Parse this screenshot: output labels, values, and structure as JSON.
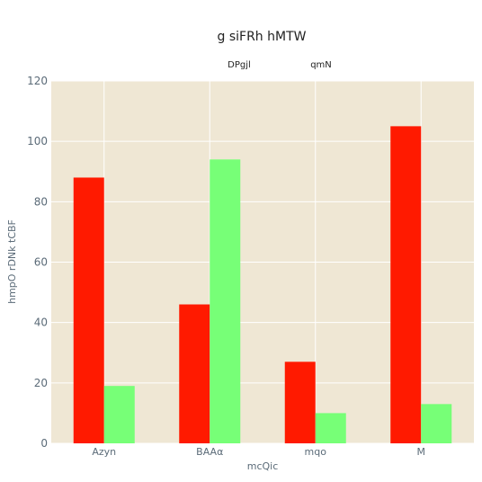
{
  "chart_data": {
    "type": "bar",
    "title": "g siFRh hMTW",
    "xlabel": "mcQic",
    "ylabel": "hmpO rDNk tCBF",
    "categories": [
      "Azyn",
      "BAAα",
      "mqo",
      "M"
    ],
    "series": [
      {
        "name": "DPgjl",
        "color": "#ff1a00",
        "values": [
          88,
          46,
          27,
          105
        ]
      },
      {
        "name": "qmN",
        "color": "#77ff77",
        "values": [
          19,
          94,
          10,
          13
        ]
      }
    ],
    "ylim": [
      0,
      120
    ],
    "yticks": [
      0,
      20,
      40,
      60,
      80,
      100,
      120
    ],
    "grid": true,
    "legend": "top",
    "plot_bg": "#efe7d4",
    "grid_color": "#ffffff"
  }
}
